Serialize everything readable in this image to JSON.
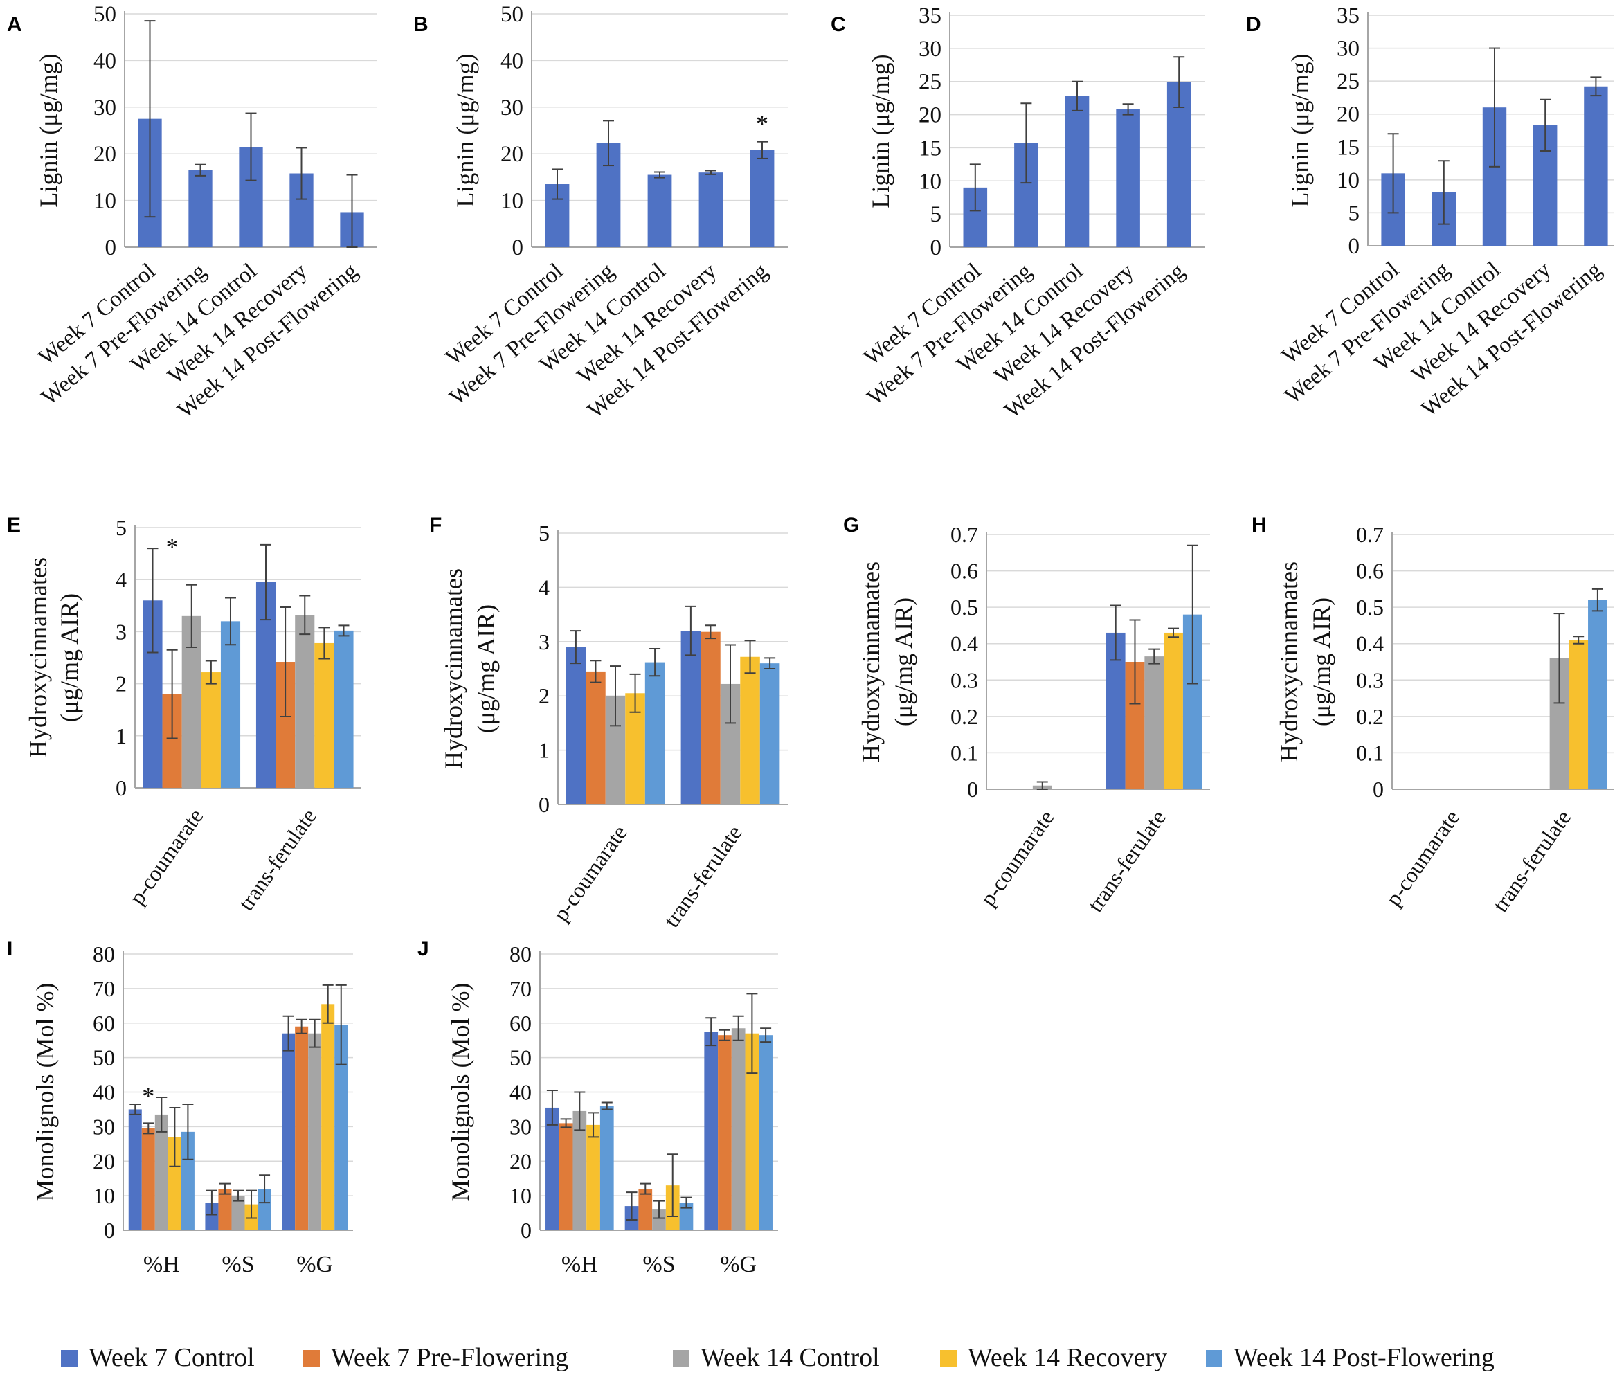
{
  "colors": {
    "series": [
      "#4F72C4",
      "#E07B39",
      "#A5A5A5",
      "#F7C02E",
      "#5F9AD6"
    ],
    "grid": "#D9D9D9",
    "axis": "#A6A6A6",
    "error": "#404040"
  },
  "legend": {
    "items": [
      {
        "label": "Week 7 Control",
        "color": "#4F72C4"
      },
      {
        "label": "Week 7 Pre-Flowering",
        "color": "#E07B39"
      },
      {
        "label": "Week 14 Control",
        "color": "#A5A5A5"
      },
      {
        "label": "Week 14 Recovery",
        "color": "#F7C02E"
      },
      {
        "label": "Week 14 Post-Flowering",
        "color": "#5F9AD6"
      }
    ]
  },
  "chart_data": [
    {
      "panel": "A",
      "type": "bar",
      "ylabel": "Lignin (μg/mg)",
      "ylim": [
        0,
        50
      ],
      "yticks": [
        0,
        10,
        20,
        30,
        40,
        50
      ],
      "categories": [
        "Week 7 Control",
        "Week 7 Pre-Flowering",
        "Week 14 Control",
        "Week 14 Recovery",
        "Week 14 Post-Flowering"
      ],
      "values": [
        27.5,
        16.5,
        21.5,
        15.8,
        7.5
      ],
      "errors": [
        21,
        1.2,
        7.2,
        5.5,
        8
      ],
      "significance": []
    },
    {
      "panel": "B",
      "type": "bar",
      "ylabel": "Lignin (μg/mg)",
      "ylim": [
        0,
        50
      ],
      "yticks": [
        0,
        10,
        20,
        30,
        40,
        50
      ],
      "categories": [
        "Week 7 Control",
        "Week 7 Pre-Flowering",
        "Week 14 Control",
        "Week 14 Recovery",
        "Week 14 Post-Flowering"
      ],
      "values": [
        13.5,
        22.3,
        15.5,
        16,
        20.8
      ],
      "errors": [
        3.2,
        4.8,
        0.6,
        0.4,
        1.8
      ],
      "significance": [
        {
          "index": 4,
          "mark": "*"
        }
      ]
    },
    {
      "panel": "C",
      "type": "bar",
      "ylabel": "Lignin (μg/mg)",
      "ylim": [
        0,
        35
      ],
      "yticks": [
        0,
        5,
        10,
        15,
        20,
        25,
        30,
        35
      ],
      "categories": [
        "Week 7 Control",
        "Week 7 Pre-Flowering",
        "Week 14 Control",
        "Week 14 Recovery",
        "Week 14 Post-Flowering"
      ],
      "values": [
        9,
        15.7,
        22.8,
        20.8,
        24.9
      ],
      "errors": [
        3.5,
        6,
        2.2,
        0.8,
        3.8
      ],
      "significance": []
    },
    {
      "panel": "D",
      "type": "bar",
      "ylabel": "Lignin (μg/mg)",
      "ylim": [
        0,
        35
      ],
      "yticks": [
        0,
        5,
        10,
        15,
        20,
        25,
        30,
        35
      ],
      "categories": [
        "Week 7 Control",
        "Week 7 Pre-Flowering",
        "Week 14 Control",
        "Week 14 Recovery",
        "Week 14 Post-Flowering"
      ],
      "values": [
        11,
        8.1,
        21,
        18.3,
        24.2
      ],
      "errors": [
        6,
        4.8,
        9,
        3.9,
        1.4
      ],
      "significance": []
    },
    {
      "panel": "E",
      "type": "grouped-bar",
      "ylabel": [
        "Hydroxycinnamates",
        "(μg/mg AIR)"
      ],
      "ylim": [
        0,
        5
      ],
      "yticks": [
        0,
        1,
        2,
        3,
        4,
        5
      ],
      "categories": [
        "p-coumarate",
        "trans-ferulate"
      ],
      "series": [
        {
          "name": "Week 7 Control",
          "values": [
            3.6,
            3.95
          ],
          "errors": [
            1.0,
            0.72
          ]
        },
        {
          "name": "Week 7 Pre-Flowering",
          "values": [
            1.8,
            2.42
          ],
          "errors": [
            0.85,
            1.05
          ]
        },
        {
          "name": "Week 14 Control",
          "values": [
            3.3,
            3.32
          ],
          "errors": [
            0.6,
            0.37
          ]
        },
        {
          "name": "Week 14 Recovery",
          "values": [
            2.22,
            2.78
          ],
          "errors": [
            0.22,
            0.3
          ]
        },
        {
          "name": "Week 14 Post-Flowering",
          "values": [
            3.2,
            3.02
          ],
          "errors": [
            0.45,
            0.1
          ]
        }
      ],
      "significance": [
        {
          "category": 0,
          "series": 1,
          "mark": "*"
        }
      ]
    },
    {
      "panel": "F",
      "type": "grouped-bar",
      "ylabel": [
        "Hydroxycinnamates",
        "(μg/mg AIR)"
      ],
      "ylim": [
        0,
        5
      ],
      "yticks": [
        0,
        1,
        2,
        3,
        4,
        5
      ],
      "categories": [
        "p-coumarate",
        "trans-ferulate"
      ],
      "series": [
        {
          "name": "Week 7 Control",
          "values": [
            2.9,
            3.2
          ],
          "errors": [
            0.3,
            0.45
          ]
        },
        {
          "name": "Week 7 Pre-Flowering",
          "values": [
            2.45,
            3.18
          ],
          "errors": [
            0.2,
            0.12
          ]
        },
        {
          "name": "Week 14 Control",
          "values": [
            2.0,
            2.22
          ],
          "errors": [
            0.55,
            0.72
          ]
        },
        {
          "name": "Week 14 Recovery",
          "values": [
            2.05,
            2.72
          ],
          "errors": [
            0.35,
            0.3
          ]
        },
        {
          "name": "Week 14 Post-Flowering",
          "values": [
            2.62,
            2.6
          ],
          "errors": [
            0.25,
            0.1
          ]
        }
      ],
      "significance": []
    },
    {
      "panel": "G",
      "type": "grouped-bar",
      "ylabel": [
        "Hydroxycinnamates",
        "(μg/mg AIR)"
      ],
      "ylim": [
        0,
        0.7
      ],
      "yticks": [
        0,
        0.1,
        0.2,
        0.3,
        0.4,
        0.5,
        0.6,
        0.7
      ],
      "categories": [
        "p-coumarate",
        "trans-ferulate"
      ],
      "series": [
        {
          "name": "Week 7 Control",
          "values": [
            0,
            0.43
          ],
          "errors": [
            0,
            0.075
          ]
        },
        {
          "name": "Week 7 Pre-Flowering",
          "values": [
            0,
            0.35
          ],
          "errors": [
            0,
            0.115
          ]
        },
        {
          "name": "Week 14 Control",
          "values": [
            0.01,
            0.365
          ],
          "errors": [
            0.01,
            0.02
          ]
        },
        {
          "name": "Week 14 Recovery",
          "values": [
            0,
            0.43
          ],
          "errors": [
            0,
            0.012
          ]
        },
        {
          "name": "Week 14 Post-Flowering",
          "values": [
            0,
            0.48
          ],
          "errors": [
            0,
            0.19
          ]
        }
      ],
      "significance": []
    },
    {
      "panel": "H",
      "type": "grouped-bar",
      "ylabel": [
        "Hydroxycinnamates",
        "(μg/mg AIR)"
      ],
      "ylim": [
        0,
        0.7
      ],
      "yticks": [
        0,
        0.1,
        0.2,
        0.3,
        0.4,
        0.5,
        0.6,
        0.7
      ],
      "categories": [
        "p-coumarate",
        "trans-ferulate"
      ],
      "series": [
        {
          "name": "Week 7 Control",
          "values": [
            0,
            0
          ],
          "errors": [
            0,
            0
          ]
        },
        {
          "name": "Week 7 Pre-Flowering",
          "values": [
            0,
            0
          ],
          "errors": [
            0,
            0
          ]
        },
        {
          "name": "Week 14 Control",
          "values": [
            0,
            0.36
          ],
          "errors": [
            0,
            0.123
          ]
        },
        {
          "name": "Week 14 Recovery",
          "values": [
            0,
            0.41
          ],
          "errors": [
            0,
            0.01
          ]
        },
        {
          "name": "Week 14 Post-Flowering",
          "values": [
            0,
            0.52
          ],
          "errors": [
            0,
            0.03
          ]
        }
      ],
      "significance": []
    },
    {
      "panel": "I",
      "type": "grouped-bar",
      "ylabel": "Monolignols (Mol %)",
      "ylim": [
        0,
        80
      ],
      "yticks": [
        0,
        10,
        20,
        30,
        40,
        50,
        60,
        70,
        80
      ],
      "categories": [
        "%H",
        "%S",
        "%G"
      ],
      "series": [
        {
          "name": "Week 7 Control",
          "values": [
            35,
            8,
            57
          ],
          "errors": [
            1.5,
            3.5,
            5
          ]
        },
        {
          "name": "Week 7 Pre-Flowering",
          "values": [
            29.5,
            12,
            59
          ],
          "errors": [
            1.5,
            1.5,
            2
          ]
        },
        {
          "name": "Week 14 Control",
          "values": [
            33.5,
            10,
            57
          ],
          "errors": [
            5,
            1.5,
            4
          ]
        },
        {
          "name": "Week 14 Recovery",
          "values": [
            27,
            7.5,
            65.5
          ],
          "errors": [
            8.5,
            4,
            5.5
          ]
        },
        {
          "name": "Week 14 Post-Flowering",
          "values": [
            28.5,
            12,
            59.5
          ],
          "errors": [
            8,
            4,
            11.5
          ]
        }
      ],
      "significance": [
        {
          "category": 0,
          "series": 1,
          "mark": "*"
        }
      ]
    },
    {
      "panel": "J",
      "type": "grouped-bar",
      "ylabel": "Monolignols (Mol %)",
      "ylim": [
        0,
        80
      ],
      "yticks": [
        0,
        10,
        20,
        30,
        40,
        50,
        60,
        70,
        80
      ],
      "categories": [
        "%H",
        "%S",
        "%G"
      ],
      "series": [
        {
          "name": "Week 7 Control",
          "values": [
            35.5,
            7,
            57.5
          ],
          "errors": [
            5,
            4,
            4
          ]
        },
        {
          "name": "Week 7 Pre-Flowering",
          "values": [
            31,
            12,
            56.5
          ],
          "errors": [
            1.2,
            1.5,
            1.5
          ]
        },
        {
          "name": "Week 14 Control",
          "values": [
            34.5,
            6,
            58.5
          ],
          "errors": [
            5.5,
            2.5,
            3.5
          ]
        },
        {
          "name": "Week 14 Recovery",
          "values": [
            30.5,
            13,
            57
          ],
          "errors": [
            3.5,
            9,
            11.5
          ]
        },
        {
          "name": "Week 14 Post-Flowering",
          "values": [
            36,
            8,
            56.5
          ],
          "errors": [
            1,
            1.5,
            2
          ]
        }
      ],
      "significance": []
    }
  ]
}
